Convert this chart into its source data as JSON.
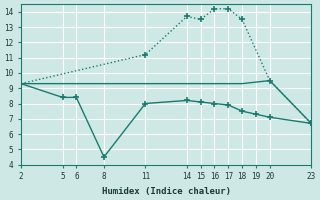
{
  "xlabel": "Humidex (Indice chaleur)",
  "bg_color": "#cde8e5",
  "grid_color": "#ffffff",
  "line_color": "#1a7a6e",
  "line1_x": [
    2,
    11,
    14,
    15,
    16,
    17,
    18,
    20,
    23
  ],
  "line1_y": [
    9.3,
    11.2,
    13.7,
    13.5,
    14.2,
    14.2,
    13.5,
    9.5,
    6.7
  ],
  "line1_style": "dotted",
  "line2_x": [
    2,
    5,
    6,
    8,
    11,
    14,
    15,
    16,
    17,
    18,
    19,
    20,
    23
  ],
  "line2_y": [
    9.3,
    8.4,
    8.4,
    4.5,
    8.0,
    8.2,
    8.1,
    8.0,
    7.9,
    7.5,
    7.3,
    7.1,
    6.7
  ],
  "line2_style": "solid",
  "line3_x": [
    2,
    11,
    14,
    15,
    16,
    17,
    18,
    20,
    23
  ],
  "line3_y": [
    9.3,
    9.3,
    9.3,
    9.3,
    9.3,
    9.3,
    9.3,
    9.5,
    6.7
  ],
  "line3_style": "solid",
  "xlim": [
    2,
    23
  ],
  "ylim": [
    4,
    14.5
  ],
  "xticks": [
    2,
    5,
    6,
    8,
    11,
    14,
    15,
    16,
    17,
    18,
    19,
    20,
    23
  ],
  "yticks": [
    4,
    5,
    6,
    7,
    8,
    9,
    10,
    11,
    12,
    13,
    14
  ]
}
